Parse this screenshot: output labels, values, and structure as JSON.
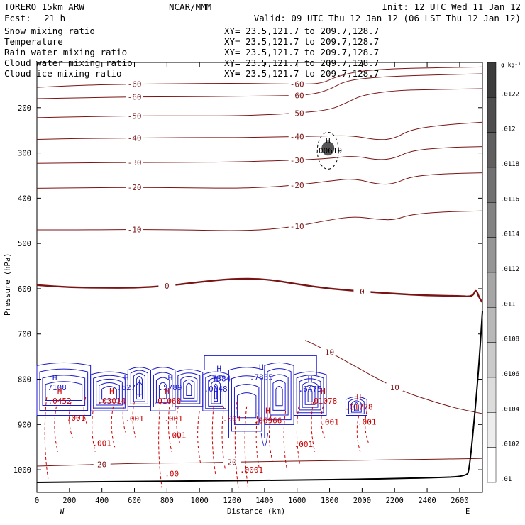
{
  "header": {
    "model": "TORERO  15km ARW",
    "org": "NCAR/MMM",
    "init": "Init: 12 UTC Wed 11 Jan 12",
    "fcst_label": "Fcst:",
    "fcst_value": "21 h",
    "valid": "Valid: 09 UTC Thu 12 Jan 12 (06 LST Thu 12 Jan 12)"
  },
  "colors": {
    "temperature": "#7a1414",
    "rain": "#cc0000",
    "cloud_water": "#1a1acc",
    "ground": "#000000"
  },
  "chart_data": {
    "type": "cross-section",
    "series": [
      {
        "name": "Snow mixing ratio",
        "color": "#000000",
        "xy": "XY=  23.5,121.7 to 209.7,128.7"
      },
      {
        "name": "Temperature",
        "color": "#cc0000",
        "xy": "XY=  23.5,121.7 to 209.7,128.7"
      },
      {
        "name": "Rain water mixing ratio",
        "color": "#cc0000",
        "xy": "XY=  23.5,121.7 to 209.7,128.7"
      },
      {
        "name": "Cloud water mixing ratio",
        "color": "#1a1acc",
        "xy": "XY=  23.5,121.7 to 209.7,128.7"
      },
      {
        "name": "Cloud ice mixing ratio",
        "color": "#000000",
        "xy": "XY=  23.5,121.7 to 209.7,128.7"
      }
    ],
    "xlabel": "Distance (km)",
    "ylabel": "Pressure (hPa)",
    "xlim": [
      0,
      2740
    ],
    "ylim": [
      1050,
      100
    ],
    "x_ticks": [
      0,
      200,
      400,
      600,
      800,
      1000,
      1200,
      1400,
      1600,
      1800,
      2000,
      2200,
      2400,
      2600
    ],
    "y_ticks": [
      200,
      300,
      400,
      500,
      600,
      700,
      800,
      900,
      1000
    ],
    "west_label": "W",
    "east_label": "E",
    "temperature_contours": [
      {
        "label": "-60",
        "points": [
          [
            0,
            155
          ],
          [
            300,
            150
          ],
          [
            600,
            148
          ],
          [
            900,
            147
          ],
          [
            1200,
            146
          ],
          [
            1400,
            147
          ],
          [
            1600,
            148
          ],
          [
            1750,
            147
          ],
          [
            1850,
            130
          ],
          [
            2000,
            118
          ],
          [
            2200,
            114
          ],
          [
            2400,
            112
          ],
          [
            2740,
            110
          ]
        ]
      },
      {
        "label": "-60",
        "points": [
          [
            0,
            180
          ],
          [
            300,
            178
          ],
          [
            600,
            176
          ],
          [
            900,
            176
          ],
          [
            1200,
            175
          ],
          [
            1400,
            174
          ],
          [
            1600,
            173
          ],
          [
            1700,
            170
          ],
          [
            1800,
            160
          ],
          [
            1900,
            140
          ],
          [
            2100,
            132
          ],
          [
            2400,
            128
          ],
          [
            2740,
            125
          ]
        ]
      },
      {
        "label": "-50",
        "points": [
          [
            0,
            222
          ],
          [
            300,
            220
          ],
          [
            600,
            218
          ],
          [
            900,
            218
          ],
          [
            1200,
            218
          ],
          [
            1400,
            216
          ],
          [
            1600,
            212
          ],
          [
            1800,
            205
          ],
          [
            1900,
            190
          ],
          [
            2000,
            172
          ],
          [
            2200,
            162
          ],
          [
            2400,
            160
          ],
          [
            2740,
            158
          ]
        ]
      },
      {
        "label": "-40",
        "points": [
          [
            0,
            270
          ],
          [
            300,
            268
          ],
          [
            600,
            267
          ],
          [
            900,
            266
          ],
          [
            1200,
            266
          ],
          [
            1400,
            265
          ],
          [
            1600,
            264
          ],
          [
            1800,
            262
          ],
          [
            1950,
            262
          ],
          [
            2100,
            272
          ],
          [
            2200,
            268
          ],
          [
            2300,
            248
          ],
          [
            2500,
            238
          ],
          [
            2740,
            232
          ]
        ]
      },
      {
        "label": "-30",
        "points": [
          [
            0,
            323
          ],
          [
            300,
            322
          ],
          [
            600,
            321
          ],
          [
            900,
            321
          ],
          [
            1200,
            320
          ],
          [
            1400,
            318
          ],
          [
            1600,
            316
          ],
          [
            1800,
            312
          ],
          [
            1950,
            306
          ],
          [
            2100,
            316
          ],
          [
            2200,
            312
          ],
          [
            2300,
            295
          ],
          [
            2500,
            288
          ],
          [
            2740,
            286
          ]
        ]
      },
      {
        "label": "-20",
        "points": [
          [
            0,
            378
          ],
          [
            300,
            377
          ],
          [
            600,
            376
          ],
          [
            900,
            377
          ],
          [
            1200,
            378
          ],
          [
            1400,
            376
          ],
          [
            1600,
            371
          ],
          [
            1800,
            362
          ],
          [
            1950,
            356
          ],
          [
            2100,
            370
          ],
          [
            2200,
            368
          ],
          [
            2300,
            352
          ],
          [
            2500,
            346
          ],
          [
            2740,
            344
          ]
        ]
      },
      {
        "label": "-10",
        "points": [
          [
            0,
            470
          ],
          [
            300,
            470
          ],
          [
            600,
            469
          ],
          [
            900,
            470
          ],
          [
            1200,
            472
          ],
          [
            1400,
            470
          ],
          [
            1600,
            462
          ],
          [
            1800,
            448
          ],
          [
            1950,
            440
          ],
          [
            2100,
            447
          ],
          [
            2200,
            448
          ],
          [
            2300,
            436
          ],
          [
            2500,
            430
          ],
          [
            2740,
            428
          ]
        ]
      },
      {
        "label": "0",
        "thick": true,
        "points": [
          [
            0,
            592
          ],
          [
            200,
            597
          ],
          [
            400,
            598
          ],
          [
            600,
            598
          ],
          [
            800,
            594
          ],
          [
            1000,
            585
          ],
          [
            1200,
            578
          ],
          [
            1400,
            578
          ],
          [
            1600,
            590
          ],
          [
            1800,
            600
          ],
          [
            2000,
            606
          ],
          [
            2200,
            611
          ],
          [
            2400,
            615
          ],
          [
            2600,
            616
          ],
          [
            2680,
            618
          ],
          [
            2700,
            600
          ],
          [
            2720,
            620
          ],
          [
            2740,
            630
          ]
        ]
      },
      {
        "label": "10",
        "points": [
          [
            1650,
            714
          ],
          [
            1700,
            722
          ],
          [
            1800,
            740
          ],
          [
            1900,
            760
          ],
          [
            2000,
            780
          ],
          [
            2100,
            800
          ],
          [
            2200,
            818
          ],
          [
            2300,
            833
          ],
          [
            2400,
            845
          ],
          [
            2500,
            856
          ],
          [
            2600,
            866
          ],
          [
            2740,
            876
          ]
        ]
      },
      {
        "label": "20",
        "points": [
          [
            0,
            992
          ],
          [
            200,
            990
          ],
          [
            400,
            988
          ],
          [
            600,
            986
          ],
          [
            800,
            985
          ],
          [
            1000,
            985
          ],
          [
            1200,
            983
          ],
          [
            1400,
            982
          ],
          [
            1600,
            981
          ],
          [
            1800,
            980
          ],
          [
            2000,
            979
          ],
          [
            2200,
            978
          ],
          [
            2400,
            977
          ],
          [
            2600,
            976
          ],
          [
            2740,
            975
          ]
        ]
      }
    ],
    "highs": [
      {
        "label": "H",
        "value": ".7108",
        "x": 110,
        "p": 815
      },
      {
        "label": "H",
        "value": ".627",
        "x": 550,
        "p": 815
      },
      {
        "label": "H",
        "value": ".5789",
        "x": 820,
        "p": 815
      },
      {
        "label": "H",
        "value": ".7384",
        "x": 1120,
        "p": 795
      },
      {
        "label": "H",
        "value": ".7835",
        "x": 1380,
        "p": 792
      },
      {
        "label": "H",
        "value": ".6475",
        "x": 1680,
        "p": 818
      },
      {
        "label": "H",
        "value": ".0452",
        "x": 140,
        "p": 845
      },
      {
        "label": "H",
        "value": ".03014",
        "x": 460,
        "p": 845
      },
      {
        "label": "H",
        "value": ".01068",
        "x": 800,
        "p": 845
      },
      {
        "label": "H",
        "value": ".0148",
        "x": 1100,
        "p": 818
      },
      {
        "label": "H",
        "value": ".06966",
        "x": 1420,
        "p": 888
      },
      {
        "label": "H",
        "value": ".01078",
        "x": 1760,
        "p": 845
      },
      {
        "label": "H",
        "value": ".01778",
        "x": 1980,
        "p": 858
      },
      {
        "label": "H",
        "value": ".00619",
        "x": 1790,
        "p": 291
      }
    ],
    "rain_labels": [
      ".001",
      ".001",
      ".001",
      ".001",
      ".001",
      ".001",
      ".001",
      ".001",
      ".001",
      ".0001",
      ".00"
    ],
    "colorbar": {
      "unit": "g kg⁻¹",
      "labels": [
        ".0122",
        ".012",
        ".0118",
        ".0116",
        ".0114",
        ".0112",
        ".011",
        ".0108",
        ".0106",
        ".0104",
        ".0102",
        ".01"
      ]
    },
    "grid": false
  }
}
